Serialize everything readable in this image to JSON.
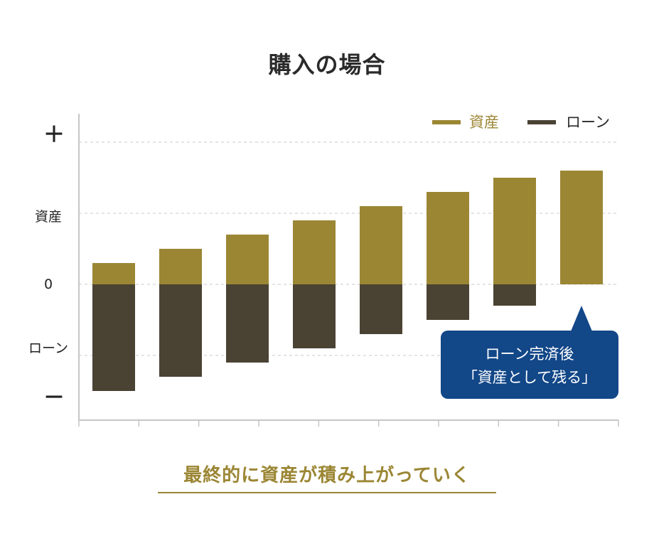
{
  "title": "購入の場合",
  "footer_text": "最終的に資産が積み上がっていく",
  "colors": {
    "asset": "#9b8634",
    "loan": "#4a4233",
    "callout": "#124788",
    "accent": "#9b8634"
  },
  "chart_data": {
    "type": "bar",
    "categories": [
      "",
      "",
      "",
      "",
      "",
      "",
      "",
      ""
    ],
    "series": [
      {
        "name": "資産",
        "values": [
          0.3,
          0.5,
          0.7,
          0.9,
          1.1,
          1.3,
          1.5,
          1.6
        ]
      },
      {
        "name": "ローン",
        "values": [
          -1.5,
          -1.3,
          -1.1,
          -0.9,
          -0.7,
          -0.5,
          -0.3,
          0
        ]
      }
    ],
    "ylim": [
      -1.9,
      2.4
    ],
    "y_labels": [
      {
        "text": "＋",
        "value": 2.1
      },
      {
        "text": "資産",
        "value": 0.95
      },
      {
        "text": "0",
        "value": 0
      },
      {
        "text": "ローン",
        "value": -0.9
      },
      {
        "text": "－",
        "value": -1.6
      }
    ],
    "gridlines": [
      2,
      1,
      0,
      -1
    ],
    "grid": true,
    "legend_position": "top-right",
    "callout": {
      "lines": [
        "ローン完済後",
        "「資産として残る」"
      ],
      "bar_index": 7
    }
  }
}
